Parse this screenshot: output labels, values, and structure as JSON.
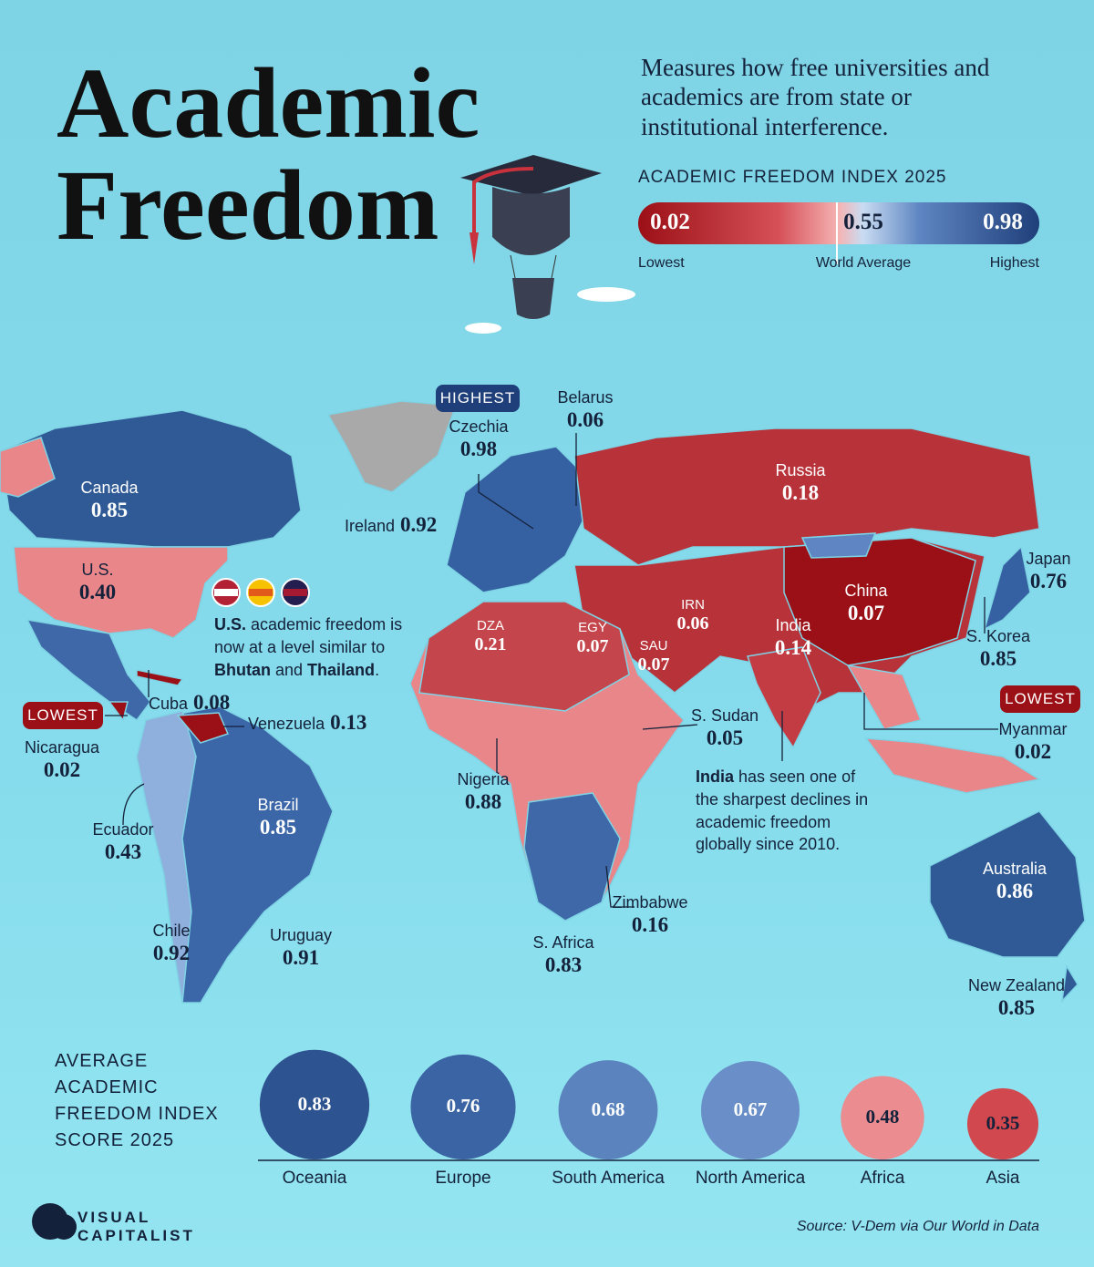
{
  "header": {
    "title_lines": [
      "Academic",
      "Freedom"
    ],
    "description": "Measures how free universities and academics are from state or institutional interference."
  },
  "legend": {
    "title": "ACADEMIC FREEDOM INDEX 2025",
    "min": "0.02",
    "avg": "0.55",
    "max": "0.98",
    "min_label": "Lowest",
    "avg_label": "World Average",
    "max_label": "Highest"
  },
  "map": {
    "badges": [
      "HIGHEST",
      "LOWEST",
      "LOWEST"
    ],
    "labels": [
      {
        "name": "Canada",
        "value": "0.85"
      },
      {
        "name": "U.S.",
        "value": "0.40"
      },
      {
        "name": "Cuba",
        "value": "0.08"
      },
      {
        "name": "Nicaragua",
        "value": "0.02"
      },
      {
        "name": "Venezuela",
        "value": "0.13"
      },
      {
        "name": "Ecuador",
        "value": "0.43"
      },
      {
        "name": "Brazil",
        "value": "0.85"
      },
      {
        "name": "Chile",
        "value": "0.92"
      },
      {
        "name": "Uruguay",
        "value": "0.91"
      },
      {
        "name": "Czechia",
        "value": "0.98"
      },
      {
        "name": "Belarus",
        "value": "0.06"
      },
      {
        "name": "Ireland",
        "value": "0.92"
      },
      {
        "name": "Russia",
        "value": "0.18"
      },
      {
        "name": "DZA",
        "value": "0.21"
      },
      {
        "name": "EGY",
        "value": "0.07"
      },
      {
        "name": "SAU",
        "value": "0.07"
      },
      {
        "name": "IRN",
        "value": "0.06"
      },
      {
        "name": "China",
        "value": "0.07"
      },
      {
        "name": "India",
        "value": "0.14"
      },
      {
        "name": "Japan",
        "value": "0.76"
      },
      {
        "name": "S. Korea",
        "value": "0.85"
      },
      {
        "name": "Myanmar",
        "value": "0.02"
      },
      {
        "name": "S. Sudan",
        "value": "0.05"
      },
      {
        "name": "Nigeria",
        "value": "0.88"
      },
      {
        "name": "Zimbabwe",
        "value": "0.16"
      },
      {
        "name": "S. Africa",
        "value": "0.83"
      },
      {
        "name": "Australia",
        "value": "0.86"
      },
      {
        "name": "New Zealand",
        "value": "0.85"
      }
    ],
    "us_note": [
      "U.S.",
      " academic freedom is now at a level similar to ",
      "Bhutan",
      " and ",
      "Thailand",
      "."
    ],
    "india_note": [
      "India",
      " has seen one of the sharpest declines in academic freedom globally since 2010."
    ]
  },
  "chart_data": {
    "type": "bubble",
    "title": "AVERAGE ACADEMIC FREEDOM INDEX SCORE 2025",
    "categories": [
      "Oceania",
      "Europe",
      "South America",
      "North America",
      "Africa",
      "Asia"
    ],
    "values": [
      0.83,
      0.76,
      0.68,
      0.67,
      0.48,
      0.35
    ],
    "colors": [
      "#2d5490",
      "#3a64a3",
      "#5b84bf",
      "#6a8fc8",
      "#ea8c90",
      "#d2484f"
    ]
  },
  "footer": {
    "source": "Source: V-Dem via Our World in Data",
    "logo": [
      "VISUAL",
      "CAPITALIST"
    ]
  }
}
